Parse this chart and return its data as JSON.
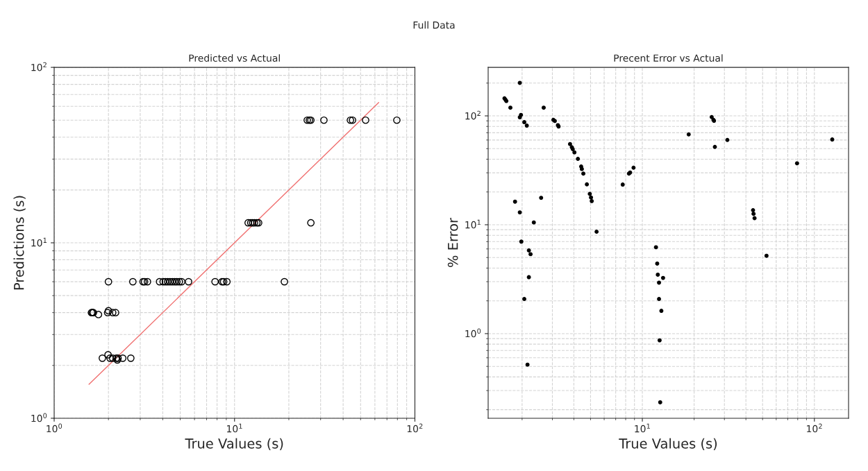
{
  "chart_data": [
    {
      "type": "scatter",
      "title": "Predicted vs Actual",
      "xlabel": "True Values (s)",
      "ylabel": "Predictions (s)",
      "log": "xy",
      "grid": true,
      "marker": "circle",
      "annotations": [
        "Full Data"
      ],
      "xlim": [
        1,
        100
      ],
      "ylim": [
        1,
        100
      ],
      "xticks": [
        {
          "value": 1,
          "label": "10$^{0}$"
        },
        {
          "value": 10,
          "label": "10$^{1}$"
        },
        {
          "value": 100,
          "label": "10$^{2}$"
        }
      ],
      "yticks": [
        {
          "value": 1,
          "label": "10$^{0}$"
        },
        {
          "value": 10,
          "label": "10$^{1}$"
        },
        {
          "value": 100,
          "label": "10$^{2}$"
        }
      ],
      "series": [
        {
          "color": "#000000",
          "x": [
            1.61,
            1.63,
            1.65,
            1.76,
            1.98,
            2.0,
            2.11,
            2.19,
            1.85,
            1.99,
            2.04,
            2.11,
            2.21,
            2.24,
            2.26,
            2.4,
            2.66,
            2.0,
            2.73,
            3.11,
            3.17,
            3.29,
            3.84,
            4.02,
            4.14,
            4.26,
            4.39,
            4.52,
            4.66,
            4.79,
            4.94,
            5.09,
            5.56,
            7.8,
            8.53,
            8.7,
            9.07,
            18.9,
            11.9,
            12.3,
            12.6,
            12.9,
            13.3,
            13.6,
            26.5,
            25.3,
            26.0,
            26.5,
            31.3,
            43.9,
            45.1,
            53.3,
            79.4
          ],
          "values": [
            4,
            4,
            4,
            3.9,
            4,
            4.1,
            4,
            4,
            2.2,
            2.3,
            2.2,
            2.2,
            2.2,
            2.15,
            2.2,
            2.2,
            2.2,
            6,
            6,
            6,
            6,
            6,
            6,
            6,
            6,
            6,
            6,
            6,
            6,
            6,
            6,
            6,
            6,
            6,
            6,
            6,
            6,
            6,
            13,
            13,
            13,
            13,
            13,
            13,
            13,
            50,
            50,
            50,
            50,
            50,
            50,
            50,
            50
          ]
        },
        {
          "type": "line",
          "color": "#f07070",
          "marker": "none",
          "line_style": "solid",
          "x": [
            1.56,
            63
          ],
          "values": [
            1.56,
            63
          ]
        }
      ]
    },
    {
      "type": "scatter",
      "title": "Precent Error vs Actual",
      "xlabel": "True Values (s)",
      "ylabel": "% Error",
      "log": "xy",
      "grid": true,
      "marker": "circle",
      "xlim": [
        1.27,
        158
      ],
      "ylim": [
        0.167,
        279
      ],
      "xticks": [
        {
          "value": 10,
          "label": "10$^{1}$"
        },
        {
          "value": 100,
          "label": "10$^{2}$"
        }
      ],
      "yticks": [
        {
          "value": 1,
          "label": "10$^{0}$"
        },
        {
          "value": 10,
          "label": "10$^{1}$"
        },
        {
          "value": 100,
          "label": "10$^{2}$"
        }
      ],
      "series": [
        {
          "color": "#000000",
          "x": [
            1.94,
            1.58,
            1.6,
            1.62,
            1.71,
            2.67,
            1.94,
            1.97,
            2.06,
            2.13,
            3.04,
            3.1,
            3.23,
            3.26,
            3.8,
            3.89,
            3.94,
            4.03,
            4.22,
            4.41,
            4.45,
            4.54,
            4.76,
            4.95,
            5.03,
            5.08,
            7.69,
            8.36,
            8.49,
            8.89,
            1.82,
            1.94,
            2.58,
            2.34,
            5.42,
            1.98,
            2.19,
            2.24,
            2.19,
            2.06,
            2.15,
            12.0,
            12.2,
            12.3,
            13.2,
            12.5,
            12.5,
            12.9,
            12.6,
            12.7,
            18.6,
            25.3,
            25.9,
            26.1,
            26.4,
            31.2,
            127,
            79.3,
            44.0,
            44.3,
            44.9,
            52.7
          ],
          "values": [
            201,
            145,
            141,
            137,
            119,
            119,
            97,
            102,
            87.6,
            81.4,
            92,
            89.8,
            82.2,
            79.9,
            55.1,
            51.5,
            49.5,
            46.2,
            40.3,
            34.3,
            32.5,
            29.5,
            23.5,
            19.2,
            17.8,
            16.5,
            23.4,
            29.5,
            30.2,
            33.4,
            16.3,
            13.0,
            17.7,
            10.5,
            8.63,
            7.0,
            5.81,
            5.37,
            3.3,
            2.08,
            0.519,
            6.22,
            4.4,
            3.48,
            3.25,
            2.94,
            2.08,
            1.62,
            0.868,
            0.234,
            67.6,
            97.5,
            92,
            90.2,
            51.9,
            60.1,
            60.7,
            36.7,
            13.6,
            12.6,
            11.5,
            5.19
          ]
        }
      ]
    }
  ]
}
